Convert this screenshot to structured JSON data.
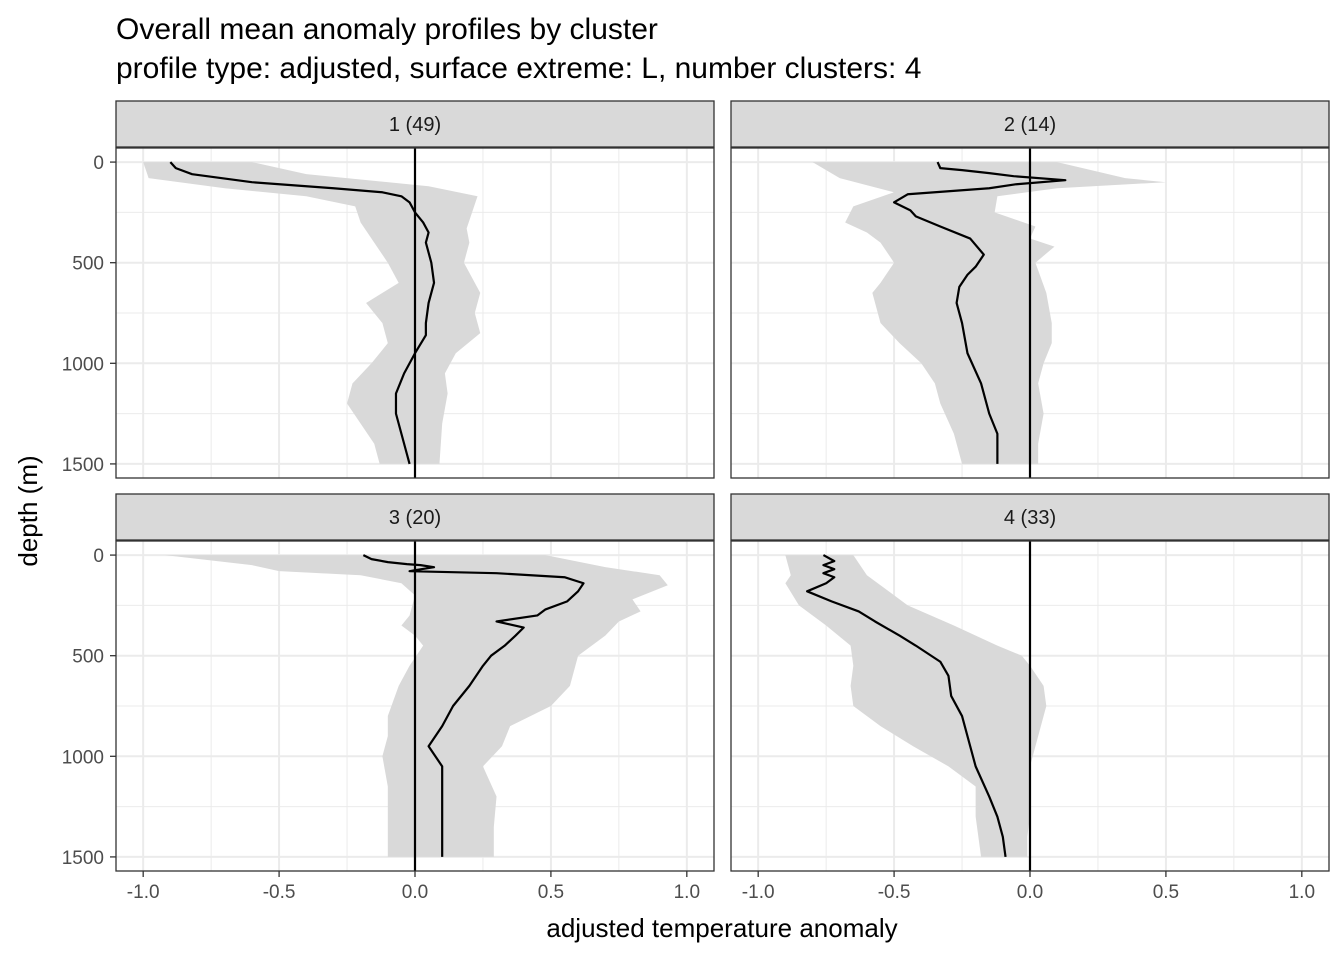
{
  "title_line1": "Overall mean anomaly profiles by cluster",
  "title_line2": "profile type: adjusted, surface extreme: L, number clusters: 4",
  "chart_data": {
    "type": "line",
    "xlabel": "adjusted temperature anomaly",
    "ylabel": "depth (m)",
    "xlim": [
      -1.1,
      1.1
    ],
    "ylim": [
      1570,
      -70
    ],
    "y_reversed": true,
    "x_ticks": [
      -1.0,
      -0.5,
      0.0,
      0.5,
      1.0
    ],
    "x_tick_labels": [
      "-1.0",
      "-0.5",
      "0.0",
      "0.5",
      "1.0"
    ],
    "y_ticks": [
      0,
      500,
      1000,
      1500
    ],
    "y_tick_labels": [
      "0",
      "500",
      "1000",
      "1500"
    ],
    "grid": true,
    "reference_line_x": 0,
    "colors": {
      "mean_line": "#000000",
      "ribbon": "#d9d9d9",
      "strip_bg": "#d9d9d9",
      "grid": "#ebebeb"
    },
    "panels": [
      {
        "label": "1 (49)",
        "mean": [
          [
            -0.9,
            0
          ],
          [
            -0.88,
            30
          ],
          [
            -0.82,
            60
          ],
          [
            -0.6,
            100
          ],
          [
            -0.3,
            130
          ],
          [
            -0.12,
            150
          ],
          [
            -0.05,
            170
          ],
          [
            -0.02,
            200
          ],
          [
            0.0,
            250
          ],
          [
            0.03,
            300
          ],
          [
            0.05,
            350
          ],
          [
            0.04,
            400
          ],
          [
            0.06,
            500
          ],
          [
            0.07,
            600
          ],
          [
            0.05,
            700
          ],
          [
            0.04,
            800
          ],
          [
            0.04,
            860
          ],
          [
            0.0,
            950
          ],
          [
            -0.04,
            1050
          ],
          [
            -0.07,
            1150
          ],
          [
            -0.07,
            1250
          ],
          [
            -0.05,
            1350
          ],
          [
            -0.03,
            1450
          ],
          [
            -0.02,
            1500
          ]
        ],
        "lower": [
          [
            -1.0,
            0
          ],
          [
            -0.98,
            80
          ],
          [
            -0.7,
            130
          ],
          [
            -0.4,
            170
          ],
          [
            -0.22,
            220
          ],
          [
            -0.2,
            300
          ],
          [
            -0.15,
            400
          ],
          [
            -0.1,
            500
          ],
          [
            -0.06,
            600
          ],
          [
            -0.18,
            700
          ],
          [
            -0.12,
            800
          ],
          [
            -0.1,
            900
          ],
          [
            -0.16,
            1000
          ],
          [
            -0.23,
            1100
          ],
          [
            -0.25,
            1200
          ],
          [
            -0.2,
            1300
          ],
          [
            -0.15,
            1400
          ],
          [
            -0.13,
            1500
          ]
        ],
        "upper": [
          [
            -0.6,
            0
          ],
          [
            -0.4,
            60
          ],
          [
            0.05,
            120
          ],
          [
            0.23,
            170
          ],
          [
            0.21,
            250
          ],
          [
            0.19,
            330
          ],
          [
            0.2,
            400
          ],
          [
            0.19,
            450
          ],
          [
            0.18,
            500
          ],
          [
            0.2,
            550
          ],
          [
            0.24,
            650
          ],
          [
            0.22,
            750
          ],
          [
            0.24,
            850
          ],
          [
            0.15,
            950
          ],
          [
            0.11,
            1050
          ],
          [
            0.12,
            1150
          ],
          [
            0.1,
            1300
          ],
          [
            0.09,
            1500
          ]
        ]
      },
      {
        "label": "2 (14)",
        "mean": [
          [
            -0.34,
            0
          ],
          [
            -0.33,
            30
          ],
          [
            -0.25,
            40
          ],
          [
            -0.15,
            55
          ],
          [
            -0.06,
            70
          ],
          [
            0.13,
            90
          ],
          [
            -0.05,
            110
          ],
          [
            -0.15,
            130
          ],
          [
            -0.45,
            160
          ],
          [
            -0.5,
            200
          ],
          [
            -0.44,
            240
          ],
          [
            -0.42,
            270
          ],
          [
            -0.33,
            320
          ],
          [
            -0.22,
            380
          ],
          [
            -0.17,
            460
          ],
          [
            -0.2,
            520
          ],
          [
            -0.23,
            560
          ],
          [
            -0.26,
            620
          ],
          [
            -0.27,
            700
          ],
          [
            -0.25,
            800
          ],
          [
            -0.23,
            950
          ],
          [
            -0.18,
            1100
          ],
          [
            -0.15,
            1250
          ],
          [
            -0.12,
            1350
          ],
          [
            -0.12,
            1500
          ]
        ],
        "lower": [
          [
            -0.8,
            0
          ],
          [
            -0.7,
            80
          ],
          [
            -0.5,
            150
          ],
          [
            -0.65,
            220
          ],
          [
            -0.68,
            300
          ],
          [
            -0.6,
            350
          ],
          [
            -0.55,
            400
          ],
          [
            -0.5,
            500
          ],
          [
            -0.55,
            600
          ],
          [
            -0.58,
            650
          ],
          [
            -0.55,
            800
          ],
          [
            -0.48,
            900
          ],
          [
            -0.4,
            1000
          ],
          [
            -0.35,
            1100
          ],
          [
            -0.33,
            1200
          ],
          [
            -0.28,
            1350
          ],
          [
            -0.25,
            1500
          ]
        ],
        "upper": [
          [
            0.1,
            0
          ],
          [
            0.35,
            80
          ],
          [
            0.5,
            100
          ],
          [
            0.1,
            130
          ],
          [
            -0.12,
            170
          ],
          [
            -0.13,
            250
          ],
          [
            0.02,
            320
          ],
          [
            0.0,
            380
          ],
          [
            0.09,
            420
          ],
          [
            0.02,
            500
          ],
          [
            0.06,
            650
          ],
          [
            0.08,
            800
          ],
          [
            0.08,
            900
          ],
          [
            0.05,
            1000
          ],
          [
            0.03,
            1100
          ],
          [
            0.05,
            1250
          ],
          [
            0.03,
            1400
          ],
          [
            0.03,
            1500
          ]
        ]
      },
      {
        "label": "3 (20)",
        "mean": [
          [
            -0.19,
            0
          ],
          [
            -0.16,
            20
          ],
          [
            -0.1,
            35
          ],
          [
            -0.03,
            45
          ],
          [
            0.02,
            50
          ],
          [
            0.07,
            60
          ],
          [
            0.0,
            75
          ],
          [
            -0.02,
            80
          ],
          [
            0.3,
            90
          ],
          [
            0.55,
            110
          ],
          [
            0.62,
            140
          ],
          [
            0.6,
            180
          ],
          [
            0.56,
            230
          ],
          [
            0.48,
            270
          ],
          [
            0.45,
            300
          ],
          [
            0.3,
            330
          ],
          [
            0.4,
            360
          ],
          [
            0.37,
            400
          ],
          [
            0.33,
            450
          ],
          [
            0.28,
            500
          ],
          [
            0.25,
            550
          ],
          [
            0.2,
            650
          ],
          [
            0.14,
            750
          ],
          [
            0.1,
            850
          ],
          [
            0.05,
            950
          ],
          [
            0.1,
            1050
          ],
          [
            0.1,
            1200
          ],
          [
            0.1,
            1350
          ],
          [
            0.1,
            1500
          ]
        ],
        "lower": [
          [
            -0.92,
            0
          ],
          [
            -0.6,
            50
          ],
          [
            -0.5,
            80
          ],
          [
            -0.2,
            100
          ],
          [
            -0.05,
            140
          ],
          [
            0.0,
            200
          ],
          [
            -0.02,
            300
          ],
          [
            -0.05,
            350
          ],
          [
            0.0,
            400
          ],
          [
            0.03,
            450
          ],
          [
            -0.02,
            550
          ],
          [
            -0.06,
            650
          ],
          [
            -0.1,
            800
          ],
          [
            -0.1,
            900
          ],
          [
            -0.12,
            1000
          ],
          [
            -0.1,
            1150
          ],
          [
            -0.1,
            1300
          ],
          [
            -0.1,
            1500
          ]
        ],
        "upper": [
          [
            0.48,
            0
          ],
          [
            0.7,
            60
          ],
          [
            0.9,
            100
          ],
          [
            0.93,
            150
          ],
          [
            0.8,
            220
          ],
          [
            0.83,
            280
          ],
          [
            0.75,
            330
          ],
          [
            0.7,
            400
          ],
          [
            0.6,
            500
          ],
          [
            0.57,
            650
          ],
          [
            0.5,
            750
          ],
          [
            0.35,
            850
          ],
          [
            0.32,
            950
          ],
          [
            0.25,
            1050
          ],
          [
            0.3,
            1200
          ],
          [
            0.29,
            1350
          ],
          [
            0.29,
            1500
          ]
        ]
      },
      {
        "label": "4 (33)",
        "mean": [
          [
            -0.76,
            0
          ],
          [
            -0.72,
            30
          ],
          [
            -0.76,
            50
          ],
          [
            -0.72,
            70
          ],
          [
            -0.76,
            90
          ],
          [
            -0.72,
            110
          ],
          [
            -0.75,
            140
          ],
          [
            -0.82,
            180
          ],
          [
            -0.73,
            230
          ],
          [
            -0.63,
            280
          ],
          [
            -0.57,
            330
          ],
          [
            -0.48,
            400
          ],
          [
            -0.42,
            450
          ],
          [
            -0.33,
            530
          ],
          [
            -0.3,
            600
          ],
          [
            -0.29,
            700
          ],
          [
            -0.25,
            800
          ],
          [
            -0.22,
            950
          ],
          [
            -0.2,
            1050
          ],
          [
            -0.15,
            1200
          ],
          [
            -0.12,
            1300
          ],
          [
            -0.1,
            1400
          ],
          [
            -0.09,
            1500
          ]
        ],
        "lower": [
          [
            -0.9,
            0
          ],
          [
            -0.88,
            100
          ],
          [
            -0.9,
            140
          ],
          [
            -0.85,
            250
          ],
          [
            -0.75,
            350
          ],
          [
            -0.66,
            450
          ],
          [
            -0.65,
            550
          ],
          [
            -0.66,
            650
          ],
          [
            -0.65,
            750
          ],
          [
            -0.55,
            850
          ],
          [
            -0.43,
            950
          ],
          [
            -0.3,
            1050
          ],
          [
            -0.2,
            1150
          ],
          [
            -0.2,
            1300
          ],
          [
            -0.18,
            1500
          ]
        ],
        "upper": [
          [
            -0.65,
            0
          ],
          [
            -0.6,
            100
          ],
          [
            -0.55,
            150
          ],
          [
            -0.45,
            250
          ],
          [
            -0.28,
            350
          ],
          [
            -0.12,
            450
          ],
          [
            -0.03,
            500
          ],
          [
            0.0,
            550
          ],
          [
            0.05,
            650
          ],
          [
            0.06,
            750
          ],
          [
            0.04,
            850
          ],
          [
            0.02,
            950
          ],
          [
            0.0,
            1050
          ],
          [
            0.0,
            1200
          ],
          [
            0.0,
            1300
          ],
          [
            -0.01,
            1400
          ],
          [
            -0.01,
            1500
          ]
        ]
      }
    ]
  }
}
